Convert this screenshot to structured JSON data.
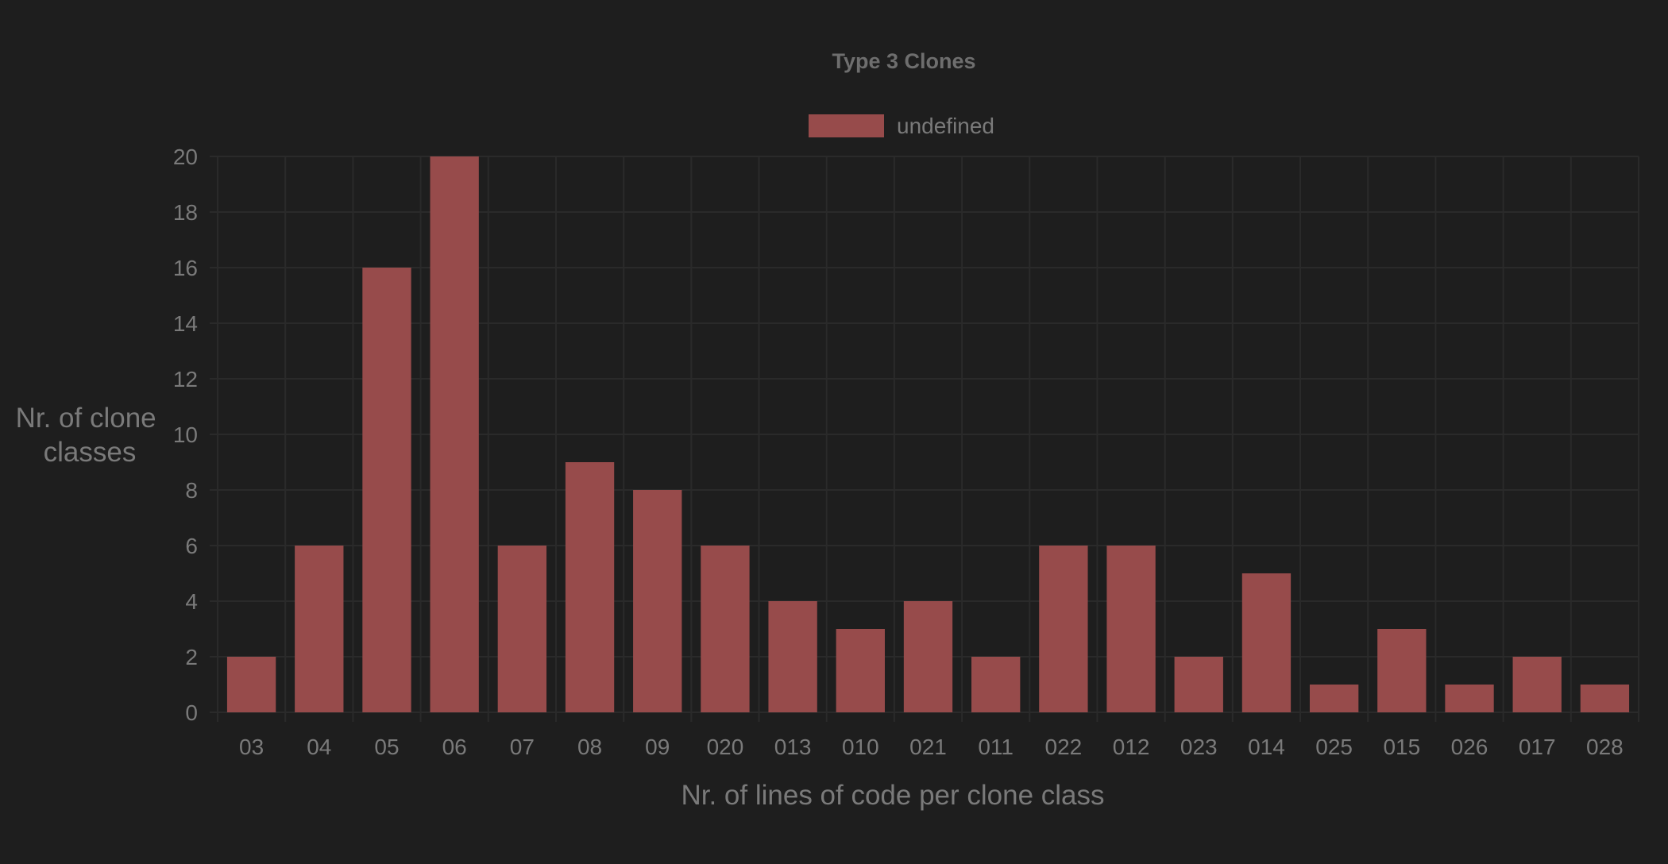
{
  "colors": {
    "background": "#1e1e1e",
    "bar": "#974b4b",
    "text": "#7a7a7a",
    "title_text": "#6e6e6e",
    "grid": "#2a2a2a"
  },
  "chart_data": {
    "type": "bar",
    "title": "Type 3 Clones",
    "xlabel": "Nr. of lines of code per clone class",
    "ylabel": "Nr. of clone classes",
    "ylabel_lines": [
      "Nr. of clone",
      "classes"
    ],
    "ylim": [
      0,
      20
    ],
    "ytick_step": 2,
    "grid": true,
    "legend_position": "top-center",
    "categories": [
      "03",
      "04",
      "05",
      "06",
      "07",
      "08",
      "09",
      "020",
      "013",
      "010",
      "021",
      "011",
      "022",
      "012",
      "023",
      "014",
      "025",
      "015",
      "026",
      "017",
      "028"
    ],
    "series": [
      {
        "name": "undefined",
        "values": [
          2,
          6,
          16,
          20,
          6,
          9,
          8,
          6,
          4,
          3,
          4,
          2,
          6,
          6,
          2,
          5,
          1,
          3,
          1,
          2,
          1
        ]
      }
    ]
  }
}
